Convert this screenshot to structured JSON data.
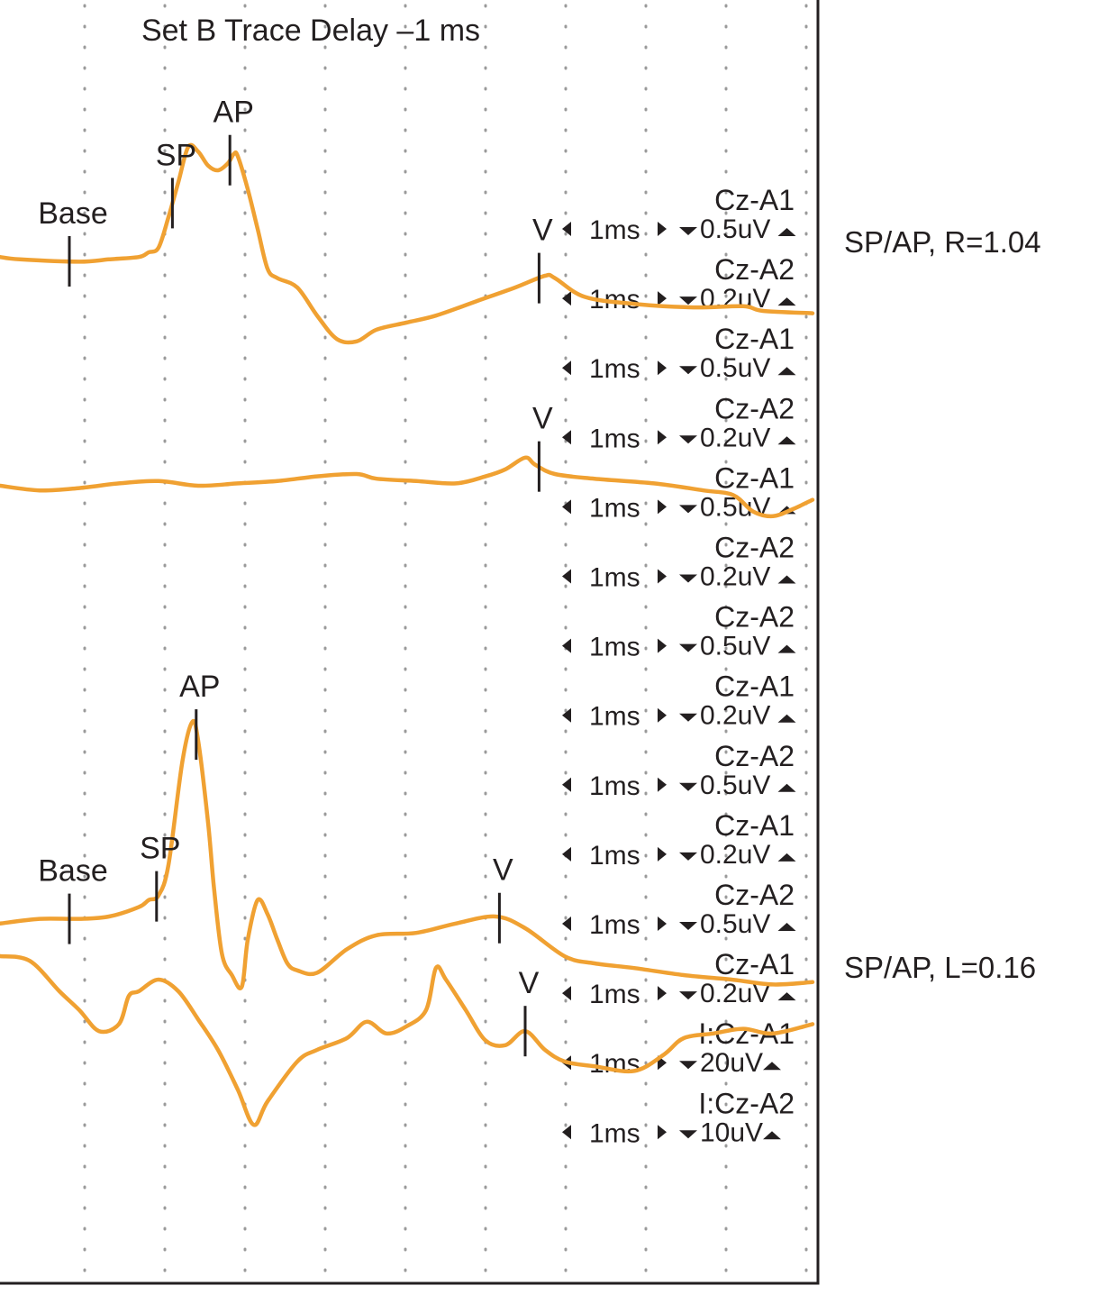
{
  "title": "Set B Trace Delay –1 ms",
  "colors": {
    "trace": "#f0a132",
    "text": "#231f20",
    "frame": "#231f20",
    "grid": "#9a9a9a"
  },
  "chart_data": {
    "type": "line",
    "title": "Set B Trace Delay –1 ms",
    "grid": true,
    "grid_columns": 10,
    "results": [
      {
        "label": "SP/AP, R=1.04",
        "trace": 1
      },
      {
        "label": "SP/AP, L=0.16",
        "trace": 3
      }
    ],
    "channels": [
      {
        "time_label": "1ms",
        "name": "Cz-A1",
        "scale": "0.5uV"
      },
      {
        "time_label": "1ms",
        "name": "Cz-A2",
        "scale": "0.2uV"
      },
      {
        "time_label": "1ms",
        "name": "Cz-A1",
        "scale": "0.5uV"
      },
      {
        "time_label": "1ms",
        "name": "Cz-A2",
        "scale": "0.2uV"
      },
      {
        "time_label": "1ms",
        "name": "Cz-A1",
        "scale": "0.5uV"
      },
      {
        "time_label": "1ms",
        "name": "Cz-A2",
        "scale": "0.2uV"
      },
      {
        "time_label": "1ms",
        "name": "Cz-A2",
        "scale": "0.5uV"
      },
      {
        "time_label": "1ms",
        "name": "Cz-A1",
        "scale": "0.2uV"
      },
      {
        "time_label": "1ms",
        "name": "Cz-A2",
        "scale": "0.5uV"
      },
      {
        "time_label": "1ms",
        "name": "Cz-A1",
        "scale": "0.2uV"
      },
      {
        "time_label": "1ms",
        "name": "Cz-A2",
        "scale": "0.5uV"
      },
      {
        "time_label": "1ms",
        "name": "Cz-A1",
        "scale": "0.2uV"
      },
      {
        "time_label": "1ms",
        "name": "I:Cz-A1",
        "scale": "20uV"
      },
      {
        "time_label": "1ms",
        "name": "I:Cz-A2",
        "scale": "10uV"
      }
    ],
    "traces": [
      {
        "points": [
          [
            0,
            2.3
          ],
          [
            10,
            2.2
          ],
          [
            40,
            2.1
          ],
          [
            55,
            2.2
          ],
          [
            70,
            2.3
          ],
          [
            75,
            2.5
          ],
          [
            80,
            2.7
          ],
          [
            85,
            4
          ],
          [
            90,
            5.5
          ],
          [
            95,
            7
          ],
          [
            100,
            6.8
          ],
          [
            105,
            6.2
          ],
          [
            110,
            6.0
          ],
          [
            115,
            6.3
          ],
          [
            118,
            6.7
          ],
          [
            120,
            6.6
          ],
          [
            125,
            5.2
          ],
          [
            130,
            3.5
          ],
          [
            135,
            1.8
          ],
          [
            140,
            1.4
          ],
          [
            150,
            1.0
          ],
          [
            160,
            -0.2
          ],
          [
            170,
            -1.2
          ],
          [
            180,
            -1.3
          ],
          [
            190,
            -0.8
          ],
          [
            205,
            -0.5
          ],
          [
            220,
            -0.2
          ],
          [
            240,
            0.4
          ],
          [
            260,
            1.0
          ],
          [
            275,
            1.5
          ],
          [
            280,
            1.4
          ],
          [
            295,
            0.6
          ],
          [
            320,
            0.3
          ],
          [
            350,
            0.15
          ],
          [
            375,
            0.2
          ],
          [
            385,
            0.0
          ],
          [
            410,
            -0.1
          ]
        ]
      },
      {
        "points": [
          [
            0,
            0.5
          ],
          [
            20,
            0.3
          ],
          [
            40,
            0.4
          ],
          [
            60,
            0.6
          ],
          [
            80,
            0.7
          ],
          [
            100,
            0.5
          ],
          [
            120,
            0.6
          ],
          [
            140,
            0.7
          ],
          [
            160,
            0.9
          ],
          [
            180,
            1.0
          ],
          [
            190,
            0.8
          ],
          [
            210,
            0.7
          ],
          [
            230,
            0.6
          ],
          [
            245,
            0.9
          ],
          [
            255,
            1.2
          ],
          [
            265,
            1.7
          ],
          [
            270,
            1.4
          ],
          [
            280,
            1.0
          ],
          [
            300,
            0.8
          ],
          [
            330,
            0.6
          ],
          [
            355,
            0.3
          ],
          [
            370,
            0.1
          ],
          [
            380,
            -0.6
          ],
          [
            390,
            -0.8
          ],
          [
            400,
            -0.5
          ],
          [
            410,
            -0.1
          ]
        ]
      },
      {
        "points": [
          [
            0,
            2.7
          ],
          [
            20,
            2.9
          ],
          [
            40,
            2.9
          ],
          [
            55,
            3.0
          ],
          [
            70,
            3.4
          ],
          [
            75,
            3.7
          ],
          [
            80,
            3.9
          ],
          [
            85,
            5.2
          ],
          [
            92,
            9.6
          ],
          [
            97,
            11.3
          ],
          [
            100,
            10.5
          ],
          [
            105,
            7.0
          ],
          [
            108,
            4.2
          ],
          [
            112,
            1.4
          ],
          [
            117,
            0.5
          ],
          [
            122,
            0.0
          ],
          [
            125,
            2.0
          ],
          [
            130,
            3.7
          ],
          [
            135,
            3.1
          ],
          [
            140,
            2.0
          ],
          [
            145,
            1.0
          ],
          [
            150,
            0.7
          ],
          [
            160,
            0.6
          ],
          [
            175,
            1.6
          ],
          [
            190,
            2.2
          ],
          [
            210,
            2.3
          ],
          [
            230,
            2.7
          ],
          [
            250,
            3.0
          ],
          [
            265,
            2.5
          ],
          [
            285,
            1.3
          ],
          [
            300,
            1.0
          ],
          [
            320,
            0.8
          ],
          [
            345,
            0.5
          ],
          [
            370,
            0.3
          ],
          [
            390,
            0.1
          ],
          [
            410,
            0.2
          ]
        ]
      },
      {
        "points": [
          [
            0,
            6.5
          ],
          [
            15,
            6.3
          ],
          [
            30,
            5.0
          ],
          [
            40,
            4.2
          ],
          [
            50,
            3.3
          ],
          [
            60,
            3.6
          ],
          [
            65,
            4.8
          ],
          [
            70,
            5.0
          ],
          [
            80,
            5.5
          ],
          [
            90,
            5.0
          ],
          [
            100,
            3.8
          ],
          [
            110,
            2.5
          ],
          [
            120,
            0.8
          ],
          [
            128,
            -0.7
          ],
          [
            135,
            0.3
          ],
          [
            150,
            2.0
          ],
          [
            160,
            2.5
          ],
          [
            175,
            3.0
          ],
          [
            185,
            3.7
          ],
          [
            195,
            3.2
          ],
          [
            205,
            3.5
          ],
          [
            215,
            4.2
          ],
          [
            220,
            6.0
          ],
          [
            225,
            5.5
          ],
          [
            235,
            4.2
          ],
          [
            245,
            2.9
          ],
          [
            255,
            2.7
          ],
          [
            265,
            3.3
          ],
          [
            275,
            2.5
          ],
          [
            285,
            2.0
          ],
          [
            300,
            1.8
          ],
          [
            320,
            1.6
          ],
          [
            335,
            2.3
          ],
          [
            345,
            3.0
          ],
          [
            360,
            3.2
          ],
          [
            375,
            3.4
          ],
          [
            390,
            3.2
          ],
          [
            410,
            3.6
          ]
        ]
      }
    ],
    "markers": [
      {
        "trace": 1,
        "label": "Base",
        "x": 35
      },
      {
        "trace": 1,
        "label": "SP",
        "x": 87
      },
      {
        "trace": 1,
        "label": "AP",
        "x": 116
      },
      {
        "trace": 1,
        "label": "V",
        "x": 272
      },
      {
        "trace": 2,
        "label": "V",
        "x": 272
      },
      {
        "trace": 3,
        "label": "Base",
        "x": 35
      },
      {
        "trace": 3,
        "label": "SP",
        "x": 79
      },
      {
        "trace": 3,
        "label": "AP",
        "x": 99
      },
      {
        "trace": 3,
        "label": "V",
        "x": 252
      },
      {
        "trace": 4,
        "label": "V",
        "x": 265
      }
    ]
  }
}
